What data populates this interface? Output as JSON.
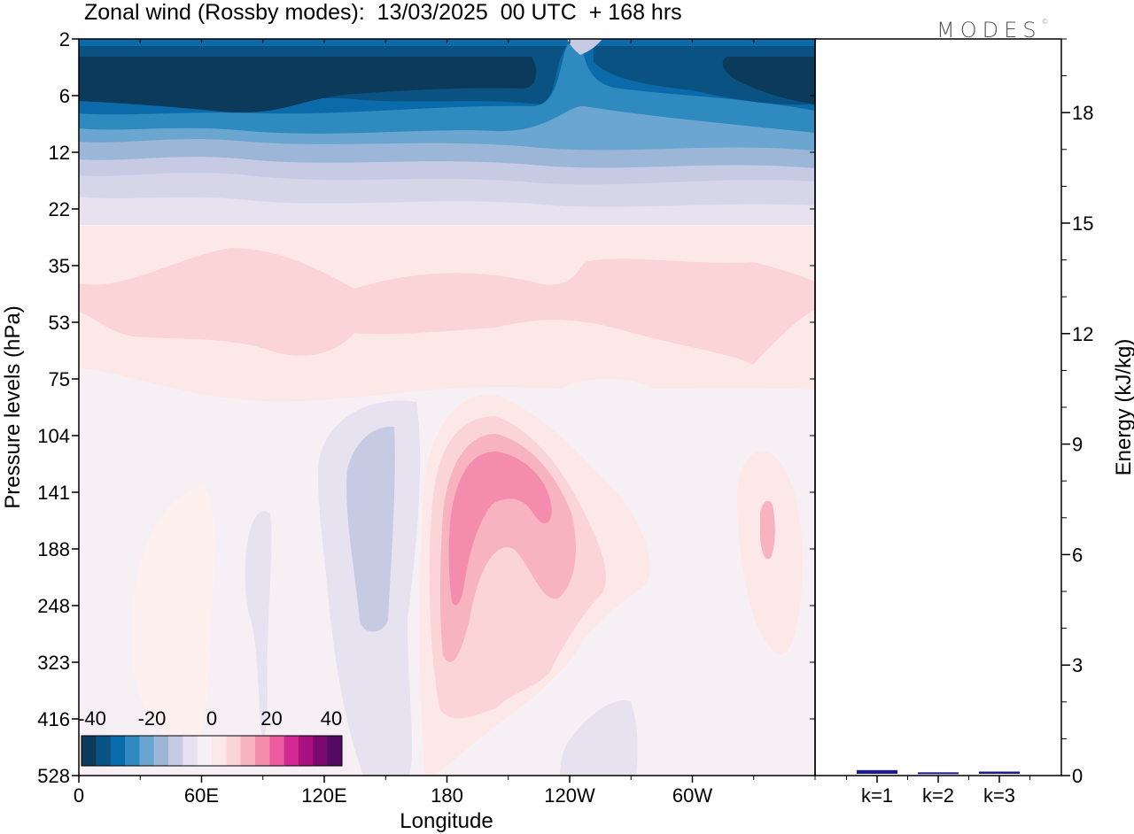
{
  "header": {
    "title": "Zonal wind (Rossby modes):  13/03/2025  00 UTC  + 168 hrs",
    "brand": "MODES",
    "brand_mark": "©"
  },
  "chart_data": [
    {
      "type": "heatmap",
      "title": "Zonal wind (Rossby modes):  13/03/2025  00 UTC  + 168 hrs",
      "xlabel": "Longitude",
      "ylabel": "Pressure levels (hPa)",
      "x_ticks": [
        "0",
        "60E",
        "120E",
        "180",
        "120W",
        "60W"
      ],
      "x_tick_values": [
        0,
        60,
        120,
        180,
        240,
        300
      ],
      "xlim": [
        0,
        360
      ],
      "y_ticks": [
        "2",
        "6",
        "12",
        "22",
        "35",
        "53",
        "75",
        "104",
        "141",
        "188",
        "248",
        "323",
        "416",
        "528"
      ],
      "y_scale": "log-like, reversed (2 at top, 528 at bottom)",
      "colorbar": {
        "tick_labels": [
          "-40",
          "-20",
          "0",
          "20",
          "40"
        ],
        "tick_values": [
          -40,
          -20,
          0,
          20,
          40
        ],
        "colors": [
          "#0b3a5a",
          "#0a5282",
          "#0a6aaa",
          "#2f8abf",
          "#6aa6cf",
          "#9cb6d8",
          "#c6cae2",
          "#e6e2ef",
          "#f6f0f5",
          "#fde8e8",
          "#fad4d6",
          "#f7b3c0",
          "#f48cad",
          "#ee5aa0",
          "#d02a90",
          "#a8117e",
          "#7a0a70",
          "#520a62"
        ]
      },
      "regions": [
        {
          "level_hPa": "2-10",
          "longitude": "0-360",
          "value": -40,
          "note": "strong easterlies aloft, weaker near 225"
        },
        {
          "level_hPa": "10-22",
          "longitude": "0-360",
          "value": -15
        },
        {
          "level_hPa": "35-75",
          "longitude": "0-360",
          "value": 8
        },
        {
          "level_hPa": "104-248",
          "longitude": "185-215",
          "value": 24,
          "note": "westerly maximum"
        },
        {
          "level_hPa": "104-248",
          "longitude": "130-150",
          "value": -8
        },
        {
          "level_hPa": "141-220",
          "longitude": "335-340",
          "value": 15
        }
      ]
    },
    {
      "type": "bar",
      "ylabel": "Energy (kJ/kg)",
      "categories": [
        "k=1",
        "k=2",
        "k=3"
      ],
      "values": [
        0.1,
        0.04,
        0.06
      ],
      "ylim": [
        0,
        20
      ],
      "y_ticks": [
        "0",
        "3",
        "6",
        "9",
        "12",
        "15",
        "18"
      ],
      "y_tick_values": [
        0,
        3,
        6,
        9,
        12,
        15,
        18
      ],
      "color": "#1a1a8c"
    }
  ]
}
